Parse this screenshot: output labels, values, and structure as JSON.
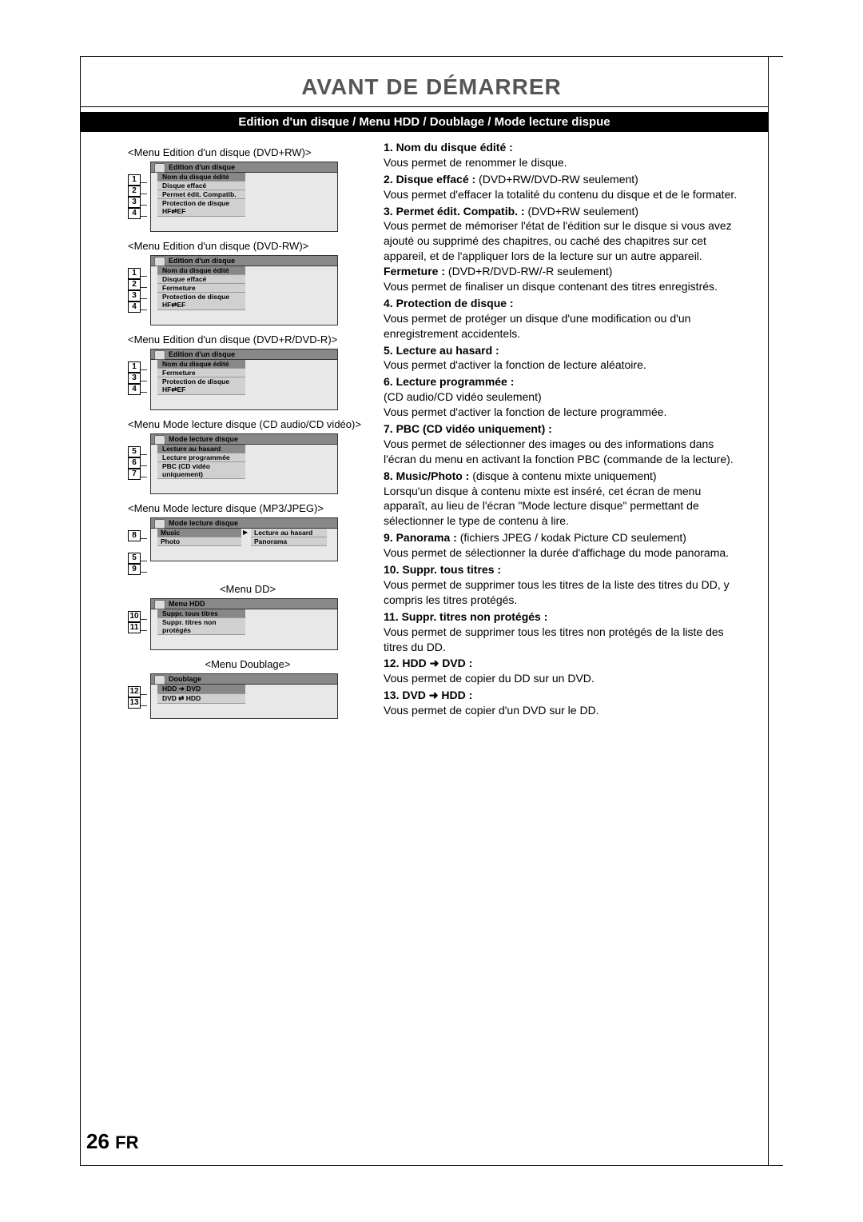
{
  "page": {
    "title": "AVANT DE DÉMARRER",
    "sub_bar": "Edition d'un disque / Menu HDD / Doublage / Mode lecture dispue",
    "page_number": "26",
    "page_lang": "FR"
  },
  "menus": [
    {
      "caption": "<Menu Edition d'un disque (DVD+RW)>",
      "header": "Edition d'un disque",
      "numbers": [
        "1",
        "2",
        "3",
        "4"
      ],
      "items": [
        {
          "label": "Nom du disque édité",
          "hl": true
        },
        {
          "label": "Disque effacé",
          "hl": false
        },
        {
          "label": "Permet édit. Compatib.",
          "hl": false
        },
        {
          "label": "Protection de disque HF⇄EF",
          "hl": false
        }
      ]
    },
    {
      "caption": "<Menu Edition d'un disque (DVD-RW)>",
      "header": "Edition d'un disque",
      "numbers": [
        "1",
        "2",
        "3",
        "4"
      ],
      "items": [
        {
          "label": "Nom du disque édité",
          "hl": true
        },
        {
          "label": "Disque effacé",
          "hl": false
        },
        {
          "label": "Fermeture",
          "hl": false
        },
        {
          "label": "Protection de disque HF⇄EF",
          "hl": false
        }
      ]
    },
    {
      "caption": "<Menu Edition d'un disque (DVD+R/DVD-R)>",
      "header": "Edition d'un disque",
      "numbers": [
        "1",
        "3",
        "4"
      ],
      "items": [
        {
          "label": "Nom du disque édité",
          "hl": true
        },
        {
          "label": "Fermeture",
          "hl": false
        },
        {
          "label": "Protection de disque HF⇄EF",
          "hl": false
        }
      ]
    },
    {
      "caption": "<Menu Mode lecture disque (CD audio/CD vidéo)>",
      "header": "Mode lecture disque",
      "numbers": [
        "5",
        "6",
        "7"
      ],
      "items": [
        {
          "label": "Lecture au hasard",
          "hl": true
        },
        {
          "label": "Lecture programmée",
          "hl": false
        },
        {
          "label": "PBC (CD vidéo uniquement)",
          "hl": false
        }
      ]
    },
    {
      "caption": "<Menu Mode lecture disque (MP3/JPEG)>",
      "header": "Mode lecture disque",
      "numbers_left": [
        "8",
        "",
        "5",
        "9"
      ],
      "dual": true,
      "col_a": [
        {
          "label": "Music",
          "hl": true
        },
        {
          "label": "Photo",
          "hl": false
        }
      ],
      "col_b": [
        {
          "label": "Lecture au hasard",
          "hl": false
        },
        {
          "label": "Panorama",
          "hl": false
        }
      ]
    },
    {
      "caption": "<Menu DD>",
      "center": true,
      "header": "Menu HDD",
      "numbers": [
        "10",
        "11"
      ],
      "items": [
        {
          "label": "Suppr. tous titres",
          "hl": true
        },
        {
          "label": "Suppr. titres non protégés",
          "hl": false
        }
      ]
    },
    {
      "caption": "<Menu Doublage>",
      "center": true,
      "header": "Doublage",
      "numbers": [
        "12",
        "13"
      ],
      "items": [
        {
          "label": "HDD ➜ DVD",
          "hl": true
        },
        {
          "label": "DVD ⇄ HDD",
          "hl": false
        }
      ]
    }
  ],
  "definitions": [
    {
      "num": "1.",
      "title": "Nom du disque édité :",
      "body": "Vous permet de renommer le disque."
    },
    {
      "num": "2.",
      "title": "Disque effacé :",
      "extra": " (DVD+RW/DVD-RW seulement)",
      "body": "Vous permet d'effacer la totalité du contenu du disque et de le formater."
    },
    {
      "num": "3.",
      "title": "Permet édit. Compatib. :",
      "extra": " (DVD+RW seulement)",
      "body": "Vous permet de mémoriser l'état de l'édition sur le disque si vous avez ajouté ou supprimé des chapitres, ou caché des chapitres sur cet appareil, et de l'appliquer lors de la lecture sur un autre appareil.",
      "body2_title": "Fermeture :",
      "body2_extra": " (DVD+R/DVD-RW/-R seulement)",
      "body2": "Vous permet de finaliser un disque contenant des titres enregistrés."
    },
    {
      "num": "4.",
      "title": "Protection de disque :",
      "body": "Vous permet de protéger un disque d'une modification ou d'un enregistrement accidentels."
    },
    {
      "num": "5.",
      "title": "Lecture au hasard :",
      "body": "Vous permet d'activer la fonction de lecture aléatoire."
    },
    {
      "num": "6.",
      "title": "Lecture programmée :",
      "body": "(CD audio/CD vidéo seulement)\nVous permet d'activer la fonction de lecture programmée."
    },
    {
      "num": "7.",
      "title": "PBC (CD vidéo uniquement) :",
      "body": "Vous permet de sélectionner des images ou des informations dans l'écran du menu en activant la fonction PBC (commande de la lecture)."
    },
    {
      "num": "8.",
      "title": "Music/Photo :",
      "extra": " (disque à contenu mixte uniquement)",
      "body": "Lorsqu'un disque à contenu mixte est inséré, cet écran de menu apparaît, au lieu de l'écran \"Mode lecture disque\" permettant de sélectionner le type de contenu à lire."
    },
    {
      "num": "9.",
      "title": "Panorama :",
      "extra": " (fichiers JPEG / kodak Picture CD seulement)",
      "body": "Vous permet de sélectionner la durée d'affichage du mode panorama."
    },
    {
      "num": "10.",
      "title": "Suppr. tous titres :",
      "body": "Vous permet de supprimer tous les titres de la liste des titres du DD, y compris les titres protégés."
    },
    {
      "num": "11.",
      "title": "Suppr. titres non protégés :",
      "body": "Vous permet de supprimer tous les titres non protégés de la liste des titres du DD."
    },
    {
      "num": "12.",
      "title": "HDD ➜ DVD :",
      "body": "Vous permet de copier du DD sur un DVD."
    },
    {
      "num": "13.",
      "title": "DVD ➜ HDD :",
      "body": "Vous permet de copier d'un DVD sur le DD."
    }
  ]
}
